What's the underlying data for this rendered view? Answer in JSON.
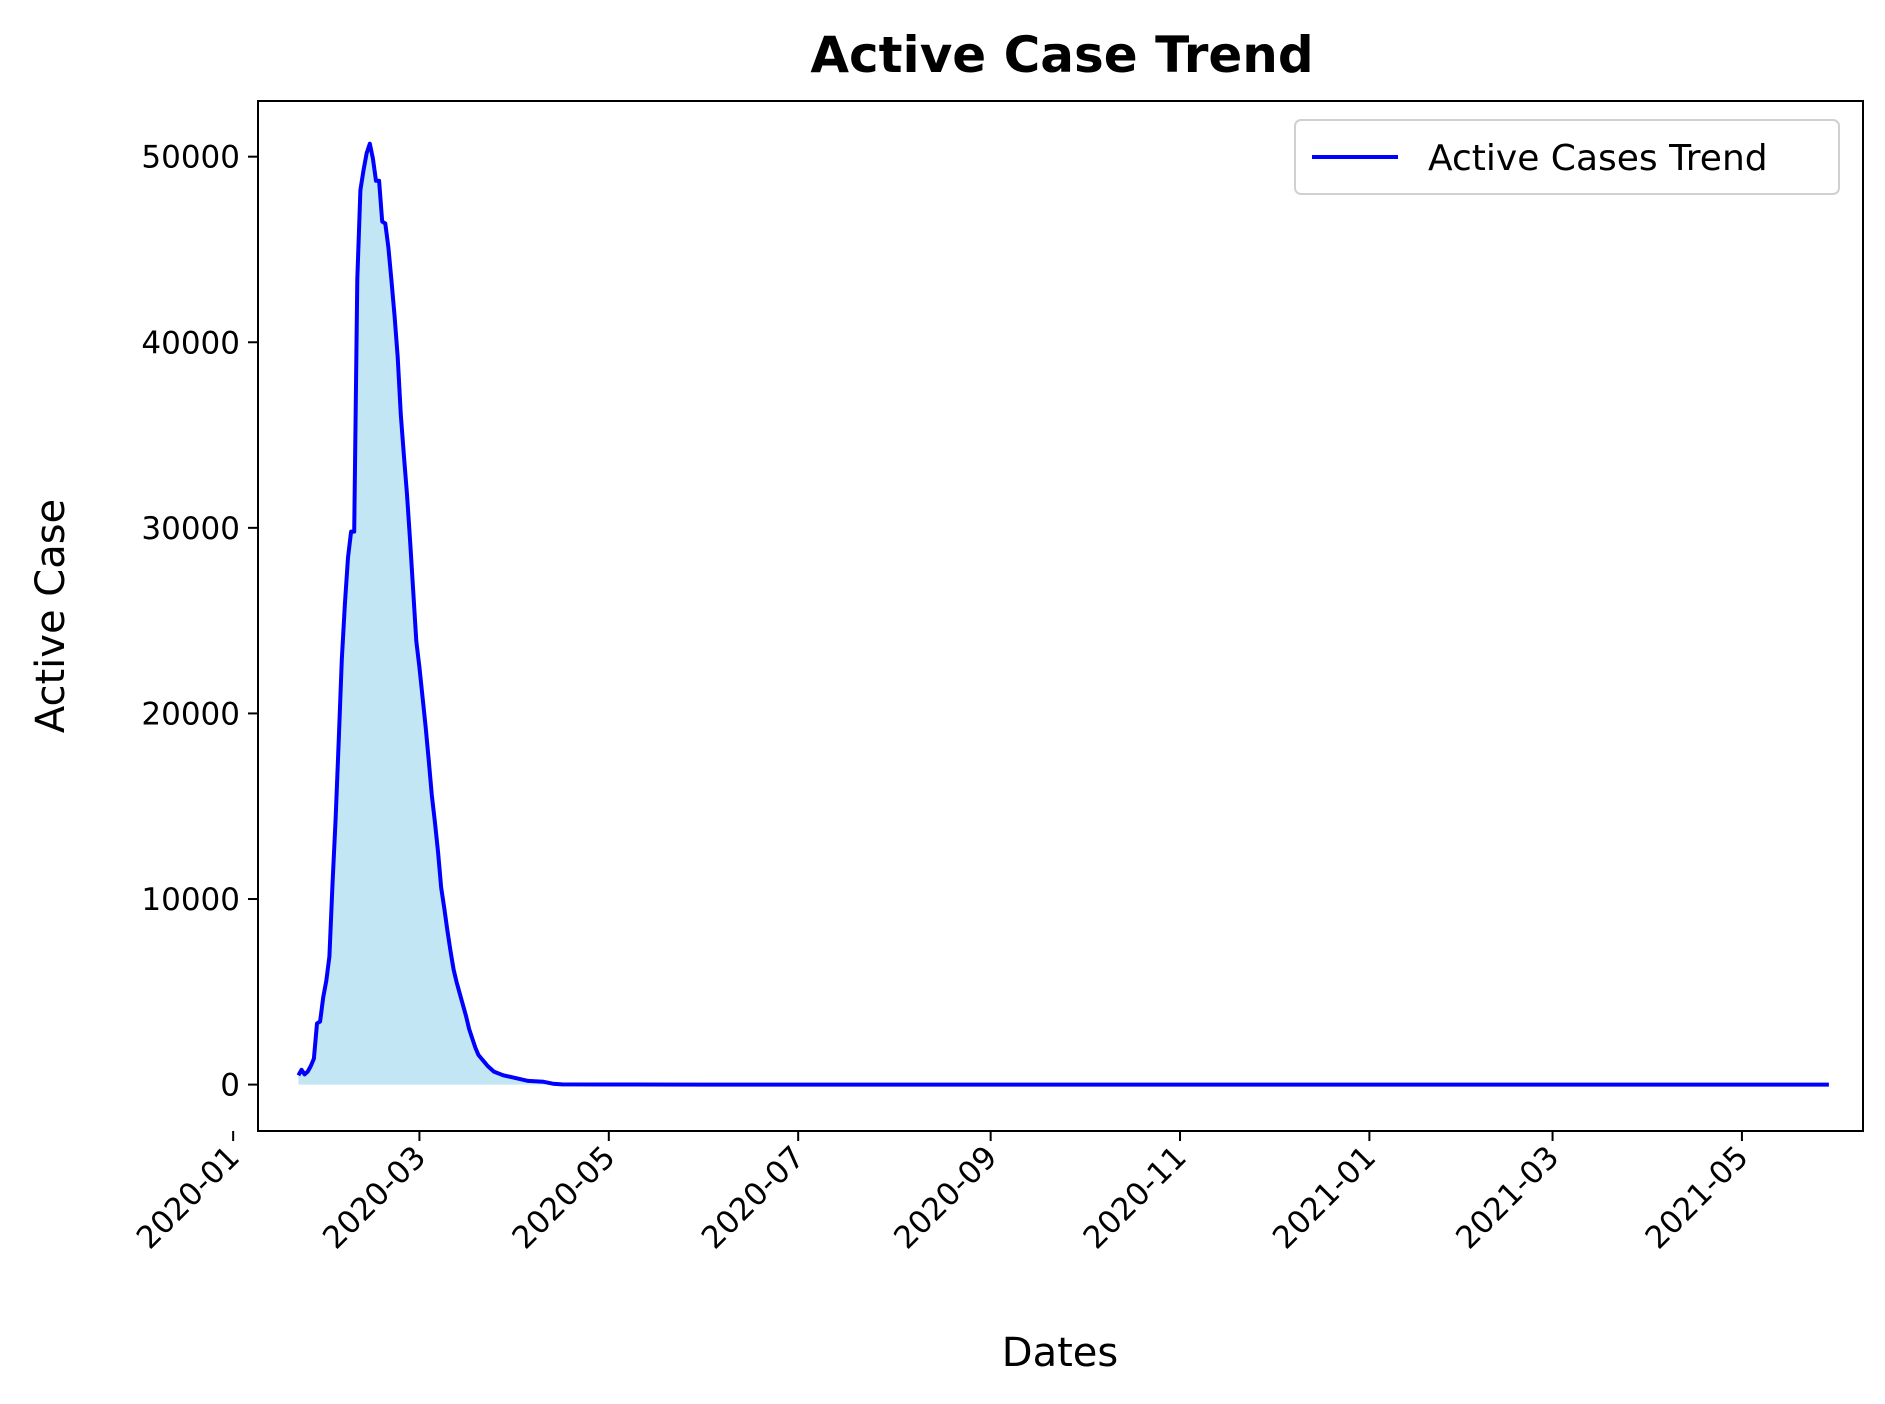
{
  "chart_data": {
    "type": "area",
    "title": "Active Case Trend",
    "xlabel": "Dates",
    "ylabel": "Active Case",
    "xlim": [
      "2020-01-09",
      "2021-06-09"
    ],
    "ylim": [
      -2500,
      53000
    ],
    "x_ticks": [
      "2020-01",
      "2020-03",
      "2020-05",
      "2020-07",
      "2020-09",
      "2020-11",
      "2021-01",
      "2021-03",
      "2021-05"
    ],
    "y_ticks": [
      0,
      10000,
      20000,
      30000,
      40000,
      50000
    ],
    "grid": false,
    "legend_position": "upper right",
    "series": [
      {
        "name": "Active Cases Trend",
        "line_color": "#0000ff",
        "fill_color": "#87ceeb",
        "points": [
          [
            "2020-01-22",
            500
          ],
          [
            "2020-01-23",
            800
          ],
          [
            "2020-01-24",
            550
          ],
          [
            "2020-01-25",
            700
          ],
          [
            "2020-01-26",
            1000
          ],
          [
            "2020-01-27",
            1400
          ],
          [
            "2020-01-28",
            3300
          ],
          [
            "2020-01-29",
            3400
          ],
          [
            "2020-01-30",
            4700
          ],
          [
            "2020-01-31",
            5600
          ],
          [
            "2020-02-01",
            6900
          ],
          [
            "2020-02-02",
            10800
          ],
          [
            "2020-02-03",
            14300
          ],
          [
            "2020-02-04",
            18500
          ],
          [
            "2020-02-05",
            22900
          ],
          [
            "2020-02-06",
            25900
          ],
          [
            "2020-02-07",
            28400
          ],
          [
            "2020-02-08",
            29800
          ],
          [
            "2020-02-09",
            29800
          ],
          [
            "2020-02-10",
            43400
          ],
          [
            "2020-02-11",
            48200
          ],
          [
            "2020-02-12",
            49300
          ],
          [
            "2020-02-13",
            50200
          ],
          [
            "2020-02-14",
            50700
          ],
          [
            "2020-02-15",
            49900
          ],
          [
            "2020-02-16",
            48700
          ],
          [
            "2020-02-17",
            48700
          ],
          [
            "2020-02-18",
            46500
          ],
          [
            "2020-02-19",
            46400
          ],
          [
            "2020-02-20",
            45100
          ],
          [
            "2020-02-21",
            43300
          ],
          [
            "2020-02-22",
            41400
          ],
          [
            "2020-02-23",
            39200
          ],
          [
            "2020-02-24",
            36100
          ],
          [
            "2020-02-25",
            33900
          ],
          [
            "2020-02-26",
            31800
          ],
          [
            "2020-02-27",
            29300
          ],
          [
            "2020-02-28",
            26600
          ],
          [
            "2020-02-29",
            23900
          ],
          [
            "2020-03-01",
            22500
          ],
          [
            "2020-03-02",
            20900
          ],
          [
            "2020-03-03",
            19300
          ],
          [
            "2020-03-04",
            17500
          ],
          [
            "2020-03-05",
            15600
          ],
          [
            "2020-03-06",
            14100
          ],
          [
            "2020-03-07",
            12500
          ],
          [
            "2020-03-08",
            10600
          ],
          [
            "2020-03-09",
            9500
          ],
          [
            "2020-03-10",
            8300
          ],
          [
            "2020-03-11",
            7200
          ],
          [
            "2020-03-12",
            6200
          ],
          [
            "2020-03-13",
            5500
          ],
          [
            "2020-03-14",
            4900
          ],
          [
            "2020-03-15",
            4300
          ],
          [
            "2020-03-16",
            3700
          ],
          [
            "2020-03-17",
            3000
          ],
          [
            "2020-03-18",
            2500
          ],
          [
            "2020-03-19",
            2000
          ],
          [
            "2020-03-20",
            1600
          ],
          [
            "2020-03-21",
            1400
          ],
          [
            "2020-03-22",
            1200
          ],
          [
            "2020-03-23",
            1000
          ],
          [
            "2020-03-25",
            700
          ],
          [
            "2020-03-28",
            500
          ],
          [
            "2020-04-01",
            350
          ],
          [
            "2020-04-05",
            200
          ],
          [
            "2020-04-10",
            150
          ],
          [
            "2020-04-13",
            50
          ],
          [
            "2020-04-16",
            10
          ],
          [
            "2020-05-01",
            5
          ],
          [
            "2020-06-01",
            0
          ],
          [
            "2020-09-01",
            0
          ],
          [
            "2020-12-01",
            0
          ],
          [
            "2021-03-01",
            0
          ],
          [
            "2021-05-29",
            0
          ]
        ]
      }
    ]
  }
}
